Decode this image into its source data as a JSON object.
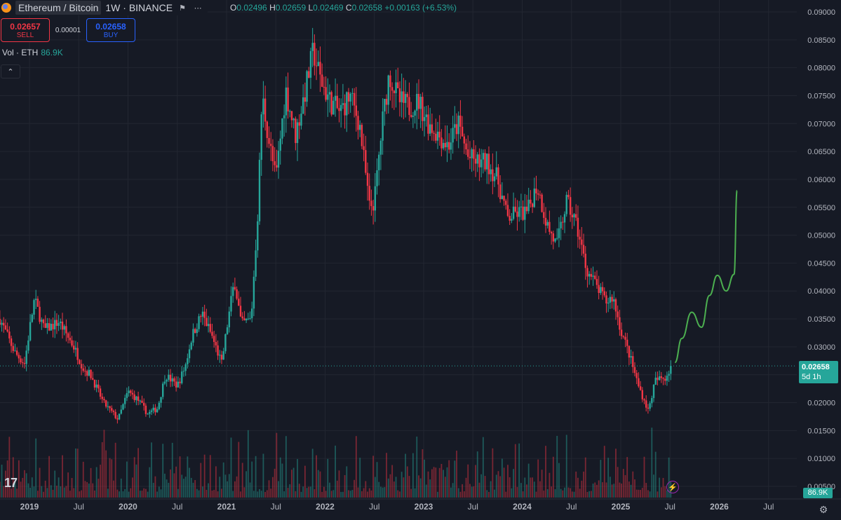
{
  "symbol": {
    "name": "Ethereum / Bitcoin",
    "meta": "1W · BINANCE"
  },
  "ohlc": {
    "o_label": "O",
    "o": "0.02496",
    "h_label": "H",
    "h": "0.02659",
    "l_label": "L",
    "l": "0.02469",
    "c_label": "C",
    "c": "0.02658",
    "change": "+0.00163 (+6.53%)"
  },
  "trade": {
    "sell_price": "0.02657",
    "sell_label": "SELL",
    "spread": "0.00001",
    "buy_price": "0.02658",
    "buy_label": "BUY"
  },
  "volume": {
    "label": "Vol · ETH",
    "value": "86.9K"
  },
  "price_tag": {
    "price": "0.02658",
    "countdown": "5d 1h"
  },
  "vol_tag": "86.9K",
  "colors": {
    "up": "#26a69a",
    "down": "#f23645",
    "projection": "#4caf50",
    "background": "#161a25",
    "grid": "#222631"
  },
  "chart_data": {
    "type": "candlestick",
    "interval": "1W",
    "ylim": [
      0.005,
      0.09
    ],
    "yticks": [
      "0.09000",
      "0.08500",
      "0.08000",
      "0.07500",
      "0.07000",
      "0.06500",
      "0.06000",
      "0.05500",
      "0.05000",
      "0.04500",
      "0.04000",
      "0.03500",
      "0.03000",
      "0.02500",
      "0.02000",
      "0.01500",
      "0.01000",
      "0.00500"
    ],
    "xticks": [
      "2019",
      "Jul",
      "2020",
      "Jul",
      "2021",
      "Jul",
      "2022",
      "Jul",
      "2023",
      "Jul",
      "2024",
      "Jul",
      "2025",
      "Jul",
      "2026",
      "Jul"
    ],
    "xtick_years": [
      2019.0,
      2019.5,
      2020.0,
      2020.5,
      2021.0,
      2021.5,
      2022.0,
      2022.5,
      2023.0,
      2023.5,
      2024.0,
      2024.5,
      2025.0,
      2025.5,
      2026.0,
      2026.5
    ],
    "price_path": [
      [
        2018.7,
        0.035
      ],
      [
        2018.85,
        0.029
      ],
      [
        2018.95,
        0.027
      ],
      [
        2019.0,
        0.033
      ],
      [
        2019.05,
        0.0385
      ],
      [
        2019.15,
        0.033
      ],
      [
        2019.3,
        0.0345
      ],
      [
        2019.45,
        0.03
      ],
      [
        2019.55,
        0.026
      ],
      [
        2019.62,
        0.025
      ],
      [
        2019.75,
        0.02
      ],
      [
        2019.9,
        0.017
      ],
      [
        2020.0,
        0.022
      ],
      [
        2020.1,
        0.0205
      ],
      [
        2020.2,
        0.018
      ],
      [
        2020.3,
        0.019
      ],
      [
        2020.38,
        0.025
      ],
      [
        2020.5,
        0.023
      ],
      [
        2020.58,
        0.0265
      ],
      [
        2020.65,
        0.032
      ],
      [
        2020.75,
        0.036
      ],
      [
        2020.85,
        0.032
      ],
      [
        2020.95,
        0.027
      ],
      [
        2021.0,
        0.033
      ],
      [
        2021.08,
        0.042
      ],
      [
        2021.15,
        0.034
      ],
      [
        2021.25,
        0.035
      ],
      [
        2021.32,
        0.055
      ],
      [
        2021.36,
        0.075
      ],
      [
        2021.43,
        0.067
      ],
      [
        2021.5,
        0.06
      ],
      [
        2021.6,
        0.076
      ],
      [
        2021.7,
        0.068
      ],
      [
        2021.8,
        0.076
      ],
      [
        2021.88,
        0.083
      ],
      [
        2021.95,
        0.078
      ],
      [
        2022.05,
        0.074
      ],
      [
        2022.15,
        0.072
      ],
      [
        2022.25,
        0.075
      ],
      [
        2022.35,
        0.07
      ],
      [
        2022.45,
        0.055
      ],
      [
        2022.5,
        0.056
      ],
      [
        2022.58,
        0.07
      ],
      [
        2022.65,
        0.079
      ],
      [
        2022.75,
        0.074
      ],
      [
        2022.85,
        0.073
      ],
      [
        2022.95,
        0.074
      ],
      [
        2023.05,
        0.07
      ],
      [
        2023.15,
        0.068
      ],
      [
        2023.25,
        0.066
      ],
      [
        2023.35,
        0.07
      ],
      [
        2023.45,
        0.064
      ],
      [
        2023.55,
        0.063
      ],
      [
        2023.65,
        0.063
      ],
      [
        2023.75,
        0.06
      ],
      [
        2023.85,
        0.053
      ],
      [
        2023.95,
        0.054
      ],
      [
        2024.05,
        0.054
      ],
      [
        2024.15,
        0.059
      ],
      [
        2024.25,
        0.052
      ],
      [
        2024.35,
        0.048
      ],
      [
        2024.45,
        0.056
      ],
      [
        2024.55,
        0.052
      ],
      [
        2024.65,
        0.044
      ],
      [
        2024.75,
        0.041
      ],
      [
        2024.85,
        0.038
      ],
      [
        2024.92,
        0.039
      ],
      [
        2025.0,
        0.033
      ],
      [
        2025.08,
        0.029
      ],
      [
        2025.18,
        0.023
      ],
      [
        2025.28,
        0.0185
      ],
      [
        2025.35,
        0.024
      ],
      [
        2025.45,
        0.0245
      ],
      [
        2025.52,
        0.0266
      ]
    ],
    "projection_path": [
      [
        2025.55,
        0.0272
      ],
      [
        2025.62,
        0.0315
      ],
      [
        2025.72,
        0.0362
      ],
      [
        2025.82,
        0.0335
      ],
      [
        2025.9,
        0.0392
      ],
      [
        2025.98,
        0.0428
      ],
      [
        2026.07,
        0.04
      ],
      [
        2026.15,
        0.043
      ],
      [
        2026.18,
        0.058
      ]
    ],
    "current_price": 0.02658
  }
}
